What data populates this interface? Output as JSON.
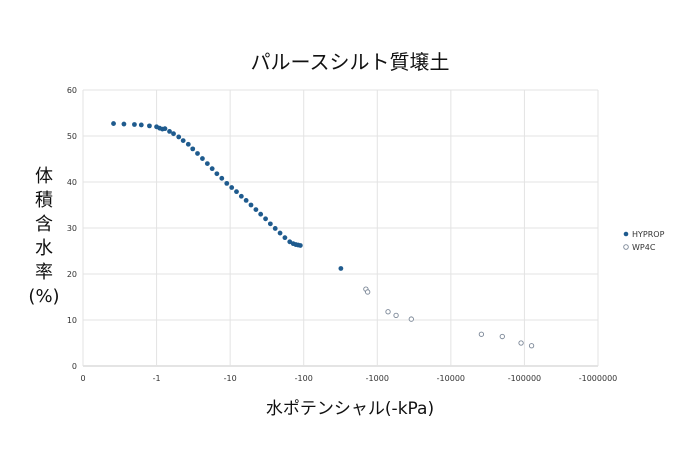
{
  "chart_data": {
    "type": "scatter",
    "title": "パルースシルト質壌土",
    "xlabel": "水ポテンシャル(-kPa)",
    "ylabel": "体\n積\n含\n水\n率\n(%)",
    "x_scale": "log",
    "xlim": [
      0.1,
      1000000
    ],
    "ylim": [
      0,
      60
    ],
    "x_ticks": [
      "0",
      "-1",
      "-10",
      "-100",
      "-1000",
      "-10000",
      "-100000",
      "-1000000"
    ],
    "y_ticks": [
      "0",
      "10",
      "20",
      "30",
      "40",
      "50",
      "60"
    ],
    "grid": true,
    "legend_position": "right",
    "series": [
      {
        "name": "HYPROP",
        "marker": "filled-circle",
        "color": "#1f5b8e",
        "x": [
          0.26,
          0.36,
          0.5,
          0.62,
          0.8,
          1.0,
          1.1,
          1.2,
          1.3,
          1.5,
          1.7,
          2.0,
          2.3,
          2.7,
          3.1,
          3.6,
          4.2,
          4.9,
          5.7,
          6.6,
          7.7,
          9.0,
          10.5,
          12.2,
          14.2,
          16.5,
          19.2,
          22.4,
          26.0,
          30.3,
          35.2,
          41.0,
          47.7,
          55.5,
          64.6,
          72.0,
          78.0,
          84.0,
          90.0,
          320.0
        ],
        "y": [
          52.7,
          52.6,
          52.5,
          52.4,
          52.2,
          52.0,
          51.7,
          51.5,
          51.6,
          51.0,
          50.5,
          49.8,
          49.0,
          48.2,
          47.2,
          46.2,
          45.1,
          44.0,
          42.9,
          41.8,
          40.8,
          39.7,
          38.8,
          37.9,
          36.9,
          36.0,
          35.0,
          34.0,
          33.0,
          32.0,
          30.9,
          29.9,
          28.9,
          27.9,
          27.0,
          26.6,
          26.4,
          26.3,
          26.2,
          21.2
        ]
      },
      {
        "name": "WP4C",
        "marker": "open-circle",
        "color": "#7a8696",
        "x": [
          700,
          740,
          1400,
          1800,
          2900,
          26000,
          50000,
          90000,
          125000
        ],
        "y": [
          16.7,
          16.1,
          11.8,
          11.0,
          10.2,
          6.9,
          6.4,
          5.0,
          4.4
        ]
      }
    ]
  }
}
